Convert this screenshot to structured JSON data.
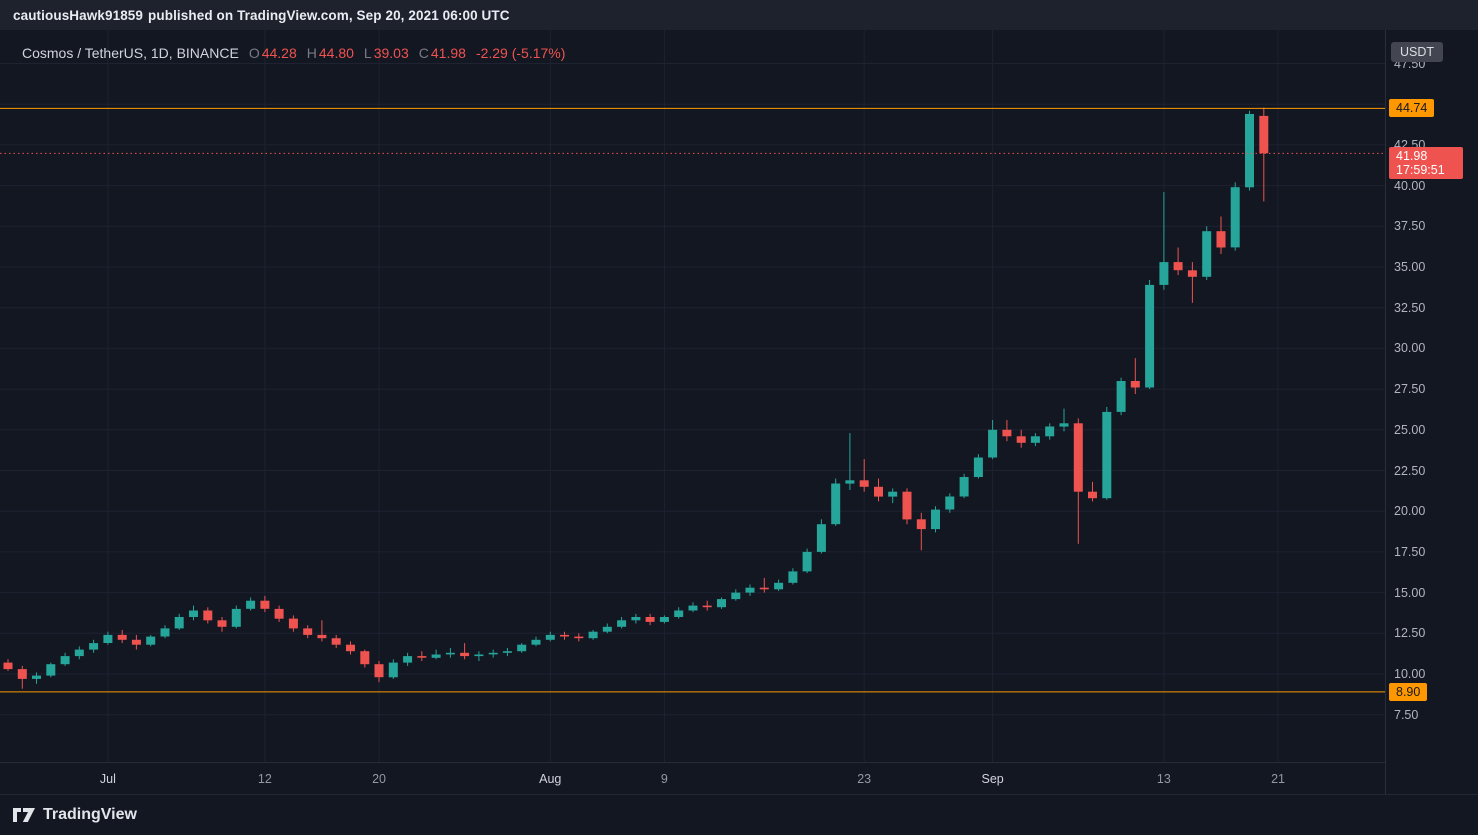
{
  "top_bar": {
    "username": "cautiousHawk91859",
    "published_text": "published on TradingView.com, Sep 20, 2021 06:00 UTC"
  },
  "legend": {
    "title": "Cosmos / TetherUS, 1D, BINANCE",
    "open_label": "O",
    "open": "44.28",
    "high_label": "H",
    "high": "44.80",
    "low_label": "L",
    "low": "39.03",
    "close_label": "C",
    "close": "41.98",
    "change": "-2.29 (-5.17%)"
  },
  "price_axis": {
    "currency": "USDT"
  },
  "footer": {
    "logo_text": "TradingView"
  },
  "colors": {
    "up": "#26a69a",
    "down": "#ef5350",
    "line_orange": "#ff9800",
    "background": "#131722",
    "panel": "#1e222d",
    "text": "#d1d4dc",
    "muted": "#787b86",
    "axis_text": "#b2b5be",
    "grid": "#1e2231"
  },
  "chart_data": {
    "type": "candlestick",
    "symbol": "Cosmos / TetherUS",
    "exchange": "BINANCE",
    "interval": "1D",
    "quote_currency": "USDT",
    "ohlc_readout": {
      "open": 44.28,
      "high": 44.8,
      "low": 39.03,
      "close": 41.98,
      "change": -2.29,
      "change_pct": -5.17
    },
    "last_price": {
      "value": 41.98,
      "countdown": "17:59:51",
      "direction": "down"
    },
    "horizontal_lines": [
      {
        "price": 44.74,
        "color": "#ff9800",
        "style": "solid"
      },
      {
        "price": 8.9,
        "color": "#ff9800",
        "style": "solid"
      }
    ],
    "price_ticks": [
      47.5,
      45.0,
      42.5,
      40.0,
      37.5,
      35.0,
      32.5,
      30.0,
      27.5,
      25.0,
      22.5,
      20.0,
      17.5,
      15.0,
      12.5,
      10.0,
      7.5
    ],
    "price_tick_step": 2.5,
    "time_ticks": [
      {
        "label": "Jul",
        "index": 7,
        "major": true
      },
      {
        "label": "12",
        "index": 18,
        "major": false
      },
      {
        "label": "20",
        "index": 26,
        "major": false
      },
      {
        "label": "Aug",
        "index": 38,
        "major": true
      },
      {
        "label": "9",
        "index": 46,
        "major": false
      },
      {
        "label": "23",
        "index": 60,
        "major": false
      },
      {
        "label": "Sep",
        "index": 69,
        "major": true
      },
      {
        "label": "13",
        "index": 81,
        "major": false
      },
      {
        "label": "21",
        "index": 89,
        "major": false
      }
    ],
    "candles": [
      [
        10.7,
        10.9,
        10.2,
        10.3
      ],
      [
        10.3,
        10.5,
        9.1,
        9.7
      ],
      [
        9.7,
        10.1,
        9.4,
        9.9
      ],
      [
        9.9,
        10.7,
        9.8,
        10.6
      ],
      [
        10.6,
        11.3,
        10.5,
        11.1
      ],
      [
        11.1,
        11.7,
        10.9,
        11.5
      ],
      [
        11.5,
        12.1,
        11.3,
        11.9
      ],
      [
        11.9,
        12.6,
        11.8,
        12.4
      ],
      [
        12.4,
        12.7,
        11.9,
        12.1
      ],
      [
        12.1,
        12.4,
        11.5,
        11.8
      ],
      [
        11.8,
        12.4,
        11.7,
        12.3
      ],
      [
        12.3,
        13.0,
        12.2,
        12.8
      ],
      [
        12.8,
        13.7,
        12.7,
        13.5
      ],
      [
        13.5,
        14.2,
        13.3,
        13.9
      ],
      [
        13.9,
        14.1,
        13.1,
        13.3
      ],
      [
        13.3,
        13.5,
        12.6,
        12.9
      ],
      [
        12.9,
        14.2,
        12.8,
        14.0
      ],
      [
        14.0,
        14.7,
        13.9,
        14.5
      ],
      [
        14.5,
        14.8,
        13.8,
        14.0
      ],
      [
        14.0,
        14.2,
        13.2,
        13.4
      ],
      [
        13.4,
        13.6,
        12.6,
        12.8
      ],
      [
        12.8,
        13.0,
        12.2,
        12.4
      ],
      [
        12.4,
        13.3,
        12.0,
        12.2
      ],
      [
        12.2,
        12.4,
        11.6,
        11.8
      ],
      [
        11.8,
        12.0,
        11.2,
        11.4
      ],
      [
        11.4,
        11.5,
        10.4,
        10.6
      ],
      [
        10.6,
        10.8,
        9.5,
        9.8
      ],
      [
        9.8,
        10.9,
        9.7,
        10.7
      ],
      [
        10.7,
        11.3,
        10.5,
        11.1
      ],
      [
        11.1,
        11.4,
        10.8,
        11.0
      ],
      [
        11.0,
        11.5,
        10.9,
        11.2
      ],
      [
        11.2,
        11.6,
        11.0,
        11.3
      ],
      [
        11.3,
        11.9,
        10.9,
        11.1
      ],
      [
        11.1,
        11.4,
        10.8,
        11.2
      ],
      [
        11.2,
        11.5,
        11.0,
        11.3
      ],
      [
        11.3,
        11.6,
        11.1,
        11.4
      ],
      [
        11.4,
        11.9,
        11.3,
        11.8
      ],
      [
        11.8,
        12.3,
        11.7,
        12.1
      ],
      [
        12.1,
        12.6,
        12.0,
        12.4
      ],
      [
        12.4,
        12.6,
        12.1,
        12.3
      ],
      [
        12.3,
        12.5,
        12.0,
        12.2
      ],
      [
        12.2,
        12.7,
        12.1,
        12.6
      ],
      [
        12.6,
        13.1,
        12.5,
        12.9
      ],
      [
        12.9,
        13.5,
        12.8,
        13.3
      ],
      [
        13.3,
        13.7,
        13.1,
        13.5
      ],
      [
        13.5,
        13.7,
        13.0,
        13.2
      ],
      [
        13.2,
        13.6,
        13.1,
        13.5
      ],
      [
        13.5,
        14.1,
        13.4,
        13.9
      ],
      [
        13.9,
        14.4,
        13.8,
        14.2
      ],
      [
        14.2,
        14.5,
        13.9,
        14.1
      ],
      [
        14.1,
        14.7,
        14.0,
        14.6
      ],
      [
        14.6,
        15.2,
        14.5,
        15.0
      ],
      [
        15.0,
        15.5,
        14.8,
        15.3
      ],
      [
        15.3,
        15.9,
        15.0,
        15.2
      ],
      [
        15.2,
        15.8,
        15.1,
        15.6
      ],
      [
        15.6,
        16.5,
        15.5,
        16.3
      ],
      [
        16.3,
        17.7,
        16.2,
        17.5
      ],
      [
        17.5,
        19.5,
        17.4,
        19.2
      ],
      [
        19.2,
        22.0,
        19.1,
        21.7
      ],
      [
        21.7,
        24.8,
        21.3,
        21.9
      ],
      [
        21.9,
        23.2,
        21.2,
        21.5
      ],
      [
        21.5,
        22.0,
        20.6,
        20.9
      ],
      [
        20.9,
        21.4,
        20.5,
        21.2
      ],
      [
        21.2,
        21.4,
        19.2,
        19.5
      ],
      [
        19.5,
        19.9,
        17.6,
        18.9
      ],
      [
        18.9,
        20.3,
        18.7,
        20.1
      ],
      [
        20.1,
        21.1,
        19.9,
        20.9
      ],
      [
        20.9,
        22.3,
        20.8,
        22.1
      ],
      [
        22.1,
        23.5,
        22.0,
        23.3
      ],
      [
        23.3,
        25.6,
        23.2,
        25.0
      ],
      [
        25.0,
        25.6,
        24.3,
        24.6
      ],
      [
        24.6,
        25.0,
        23.9,
        24.2
      ],
      [
        24.2,
        24.8,
        24.0,
        24.6
      ],
      [
        24.6,
        25.4,
        24.4,
        25.2
      ],
      [
        25.2,
        26.3,
        24.9,
        25.4
      ],
      [
        25.4,
        25.7,
        18.0,
        21.2
      ],
      [
        21.2,
        21.8,
        20.6,
        20.8
      ],
      [
        20.8,
        26.4,
        20.7,
        26.1
      ],
      [
        26.1,
        28.2,
        25.9,
        28.0
      ],
      [
        28.0,
        29.4,
        27.2,
        27.6
      ],
      [
        27.6,
        34.2,
        27.5,
        33.9
      ],
      [
        33.9,
        39.6,
        33.6,
        35.3
      ],
      [
        35.3,
        36.2,
        34.5,
        34.8
      ],
      [
        34.8,
        35.3,
        32.8,
        34.4
      ],
      [
        34.4,
        37.5,
        34.2,
        37.2
      ],
      [
        37.2,
        38.1,
        35.8,
        36.2
      ],
      [
        36.2,
        40.2,
        36.0,
        39.9
      ],
      [
        39.9,
        44.6,
        39.7,
        44.4
      ],
      [
        44.28,
        44.8,
        39.03,
        41.98
      ]
    ]
  }
}
